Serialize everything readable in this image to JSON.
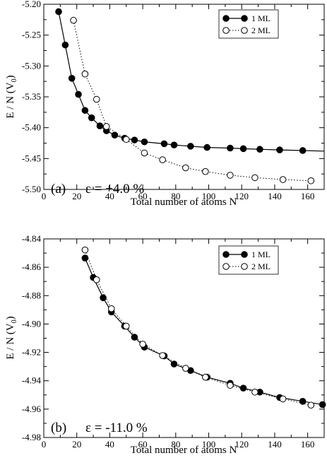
{
  "chart_data": [
    {
      "type": "line",
      "panel_label": "(a)",
      "annotation": "ε = +4.0 %",
      "xlabel": "Total number of atoms N",
      "ylabel": "E / N (V",
      "ylabel_sub": "0",
      "ylabel_end": ")",
      "xlim": [
        0,
        170
      ],
      "ylim": [
        -5.5,
        -5.2
      ],
      "xticks": [
        0,
        20,
        40,
        60,
        80,
        100,
        120,
        140,
        160
      ],
      "yticks": [
        -5.5,
        -5.45,
        -5.4,
        -5.35,
        -5.3,
        -5.25,
        -5.2
      ],
      "ytick_labels": [
        "-5.50",
        "-5.45",
        "-5.40",
        "-5.35",
        "-5.30",
        "-5.25",
        "-5.20"
      ],
      "legend_position": "top-right",
      "series": [
        {
          "name": "1 ML",
          "marker": "filled-circle",
          "line": "solid",
          "x": [
            9,
            13,
            17,
            21,
            25,
            29,
            34,
            38,
            43,
            49,
            55,
            61,
            73,
            79,
            89,
            99,
            113,
            121,
            131,
            143,
            157,
            171
          ],
          "y": [
            -5.212,
            -5.266,
            -5.32,
            -5.346,
            -5.372,
            -5.384,
            -5.397,
            -5.405,
            -5.412,
            -5.417,
            -5.42,
            -5.423,
            -5.426,
            -5.428,
            -5.43,
            -5.432,
            -5.433,
            -5.434,
            -5.435,
            -5.436,
            -5.437,
            -5.438
          ]
        },
        {
          "name": "2 ML",
          "marker": "open-circle",
          "line": "dotted",
          "x": [
            18,
            25,
            32,
            38,
            50,
            61,
            72,
            86,
            98,
            113,
            128,
            145,
            162
          ],
          "y": [
            -5.226,
            -5.313,
            -5.354,
            -5.398,
            -5.419,
            -5.441,
            -5.452,
            -5.465,
            -5.471,
            -5.477,
            -5.481,
            -5.484,
            -5.486
          ]
        }
      ]
    },
    {
      "type": "line",
      "panel_label": "(b)",
      "annotation": "ε = -11.0 %",
      "xlabel": "Total number of atoms N",
      "ylabel": "E / N (V",
      "ylabel_sub": "0",
      "ylabel_end": ")",
      "xlim": [
        0,
        170
      ],
      "ylim": [
        -4.98,
        -4.84
      ],
      "xticks": [
        0,
        20,
        40,
        60,
        80,
        100,
        120,
        140,
        160
      ],
      "yticks": [
        -4.98,
        -4.96,
        -4.94,
        -4.92,
        -4.9,
        -4.88,
        -4.86,
        -4.84
      ],
      "ytick_labels": [
        "-4.98",
        "-4.96",
        "-4.94",
        "-4.92",
        "-4.90",
        "-4.88",
        "-4.86",
        "-4.84"
      ],
      "legend_position": "top-right",
      "series": [
        {
          "name": "1 ML",
          "marker": "filled-circle",
          "line": "solid",
          "x": [
            25,
            30,
            36,
            41,
            49,
            55,
            61,
            73,
            79,
            89,
            99,
            113,
            121,
            131,
            143,
            157,
            169
          ],
          "y": [
            -4.8535,
            -4.8672,
            -4.8815,
            -4.8915,
            -4.9015,
            -4.9093,
            -4.9163,
            -4.9225,
            -4.9282,
            -4.9328,
            -4.9375,
            -4.9418,
            -4.9452,
            -4.948,
            -4.9518,
            -4.9545,
            -4.9568
          ]
        },
        {
          "name": "2 ML",
          "marker": "open-circle",
          "line": "dotted",
          "x": [
            25,
            32,
            41,
            50,
            60,
            72,
            86,
            98,
            113,
            128,
            145,
            162
          ],
          "y": [
            -4.8478,
            -4.8688,
            -4.8892,
            -4.9015,
            -4.9142,
            -4.9222,
            -4.9312,
            -4.9375,
            -4.9432,
            -4.948,
            -4.9528,
            -4.9572
          ]
        }
      ]
    }
  ]
}
